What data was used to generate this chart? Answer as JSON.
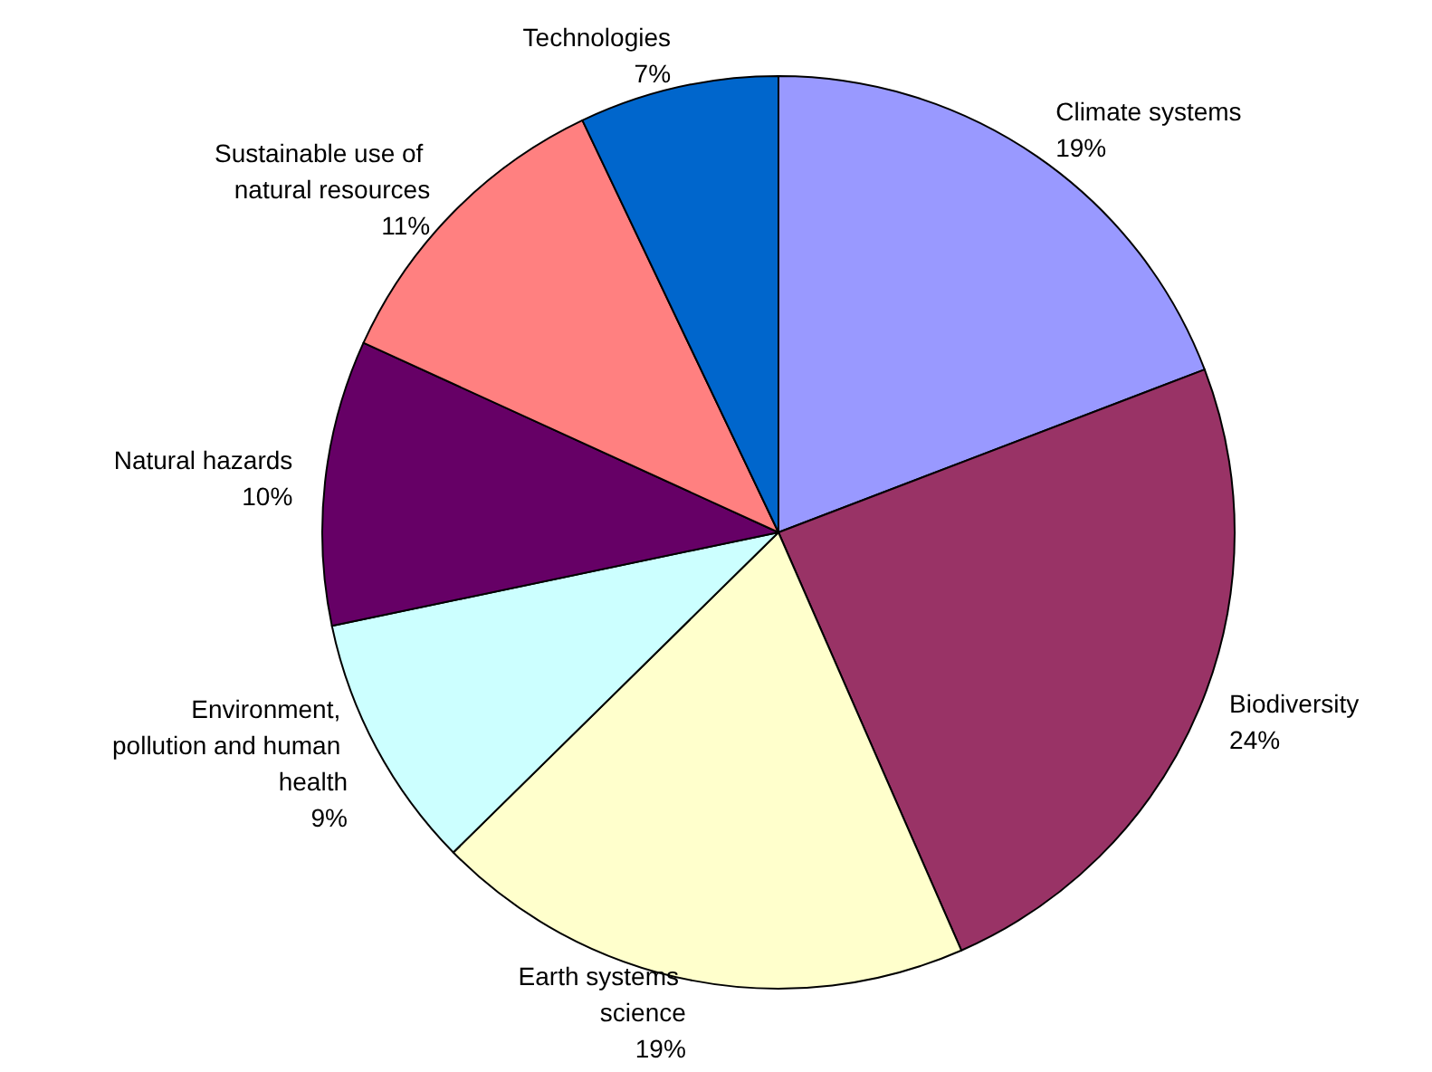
{
  "chart_data": {
    "type": "pie",
    "categories": [
      "Climate systems",
      "Biodiversity",
      "Earth systems science",
      "Environment, pollution and human health",
      "Natural hazards",
      "Sustainable use of natural resources",
      "Technologies"
    ],
    "values": [
      19,
      24,
      19,
      9,
      10,
      11,
      7
    ],
    "colors": [
      "#9999ff",
      "#993366",
      "#ffffcc",
      "#ccffff",
      "#660066",
      "#ff8080",
      "#0066cc"
    ],
    "value_labels": [
      "19%",
      "24%",
      "19%",
      "9%",
      "10%",
      "11%",
      "7%"
    ],
    "legend": false
  }
}
